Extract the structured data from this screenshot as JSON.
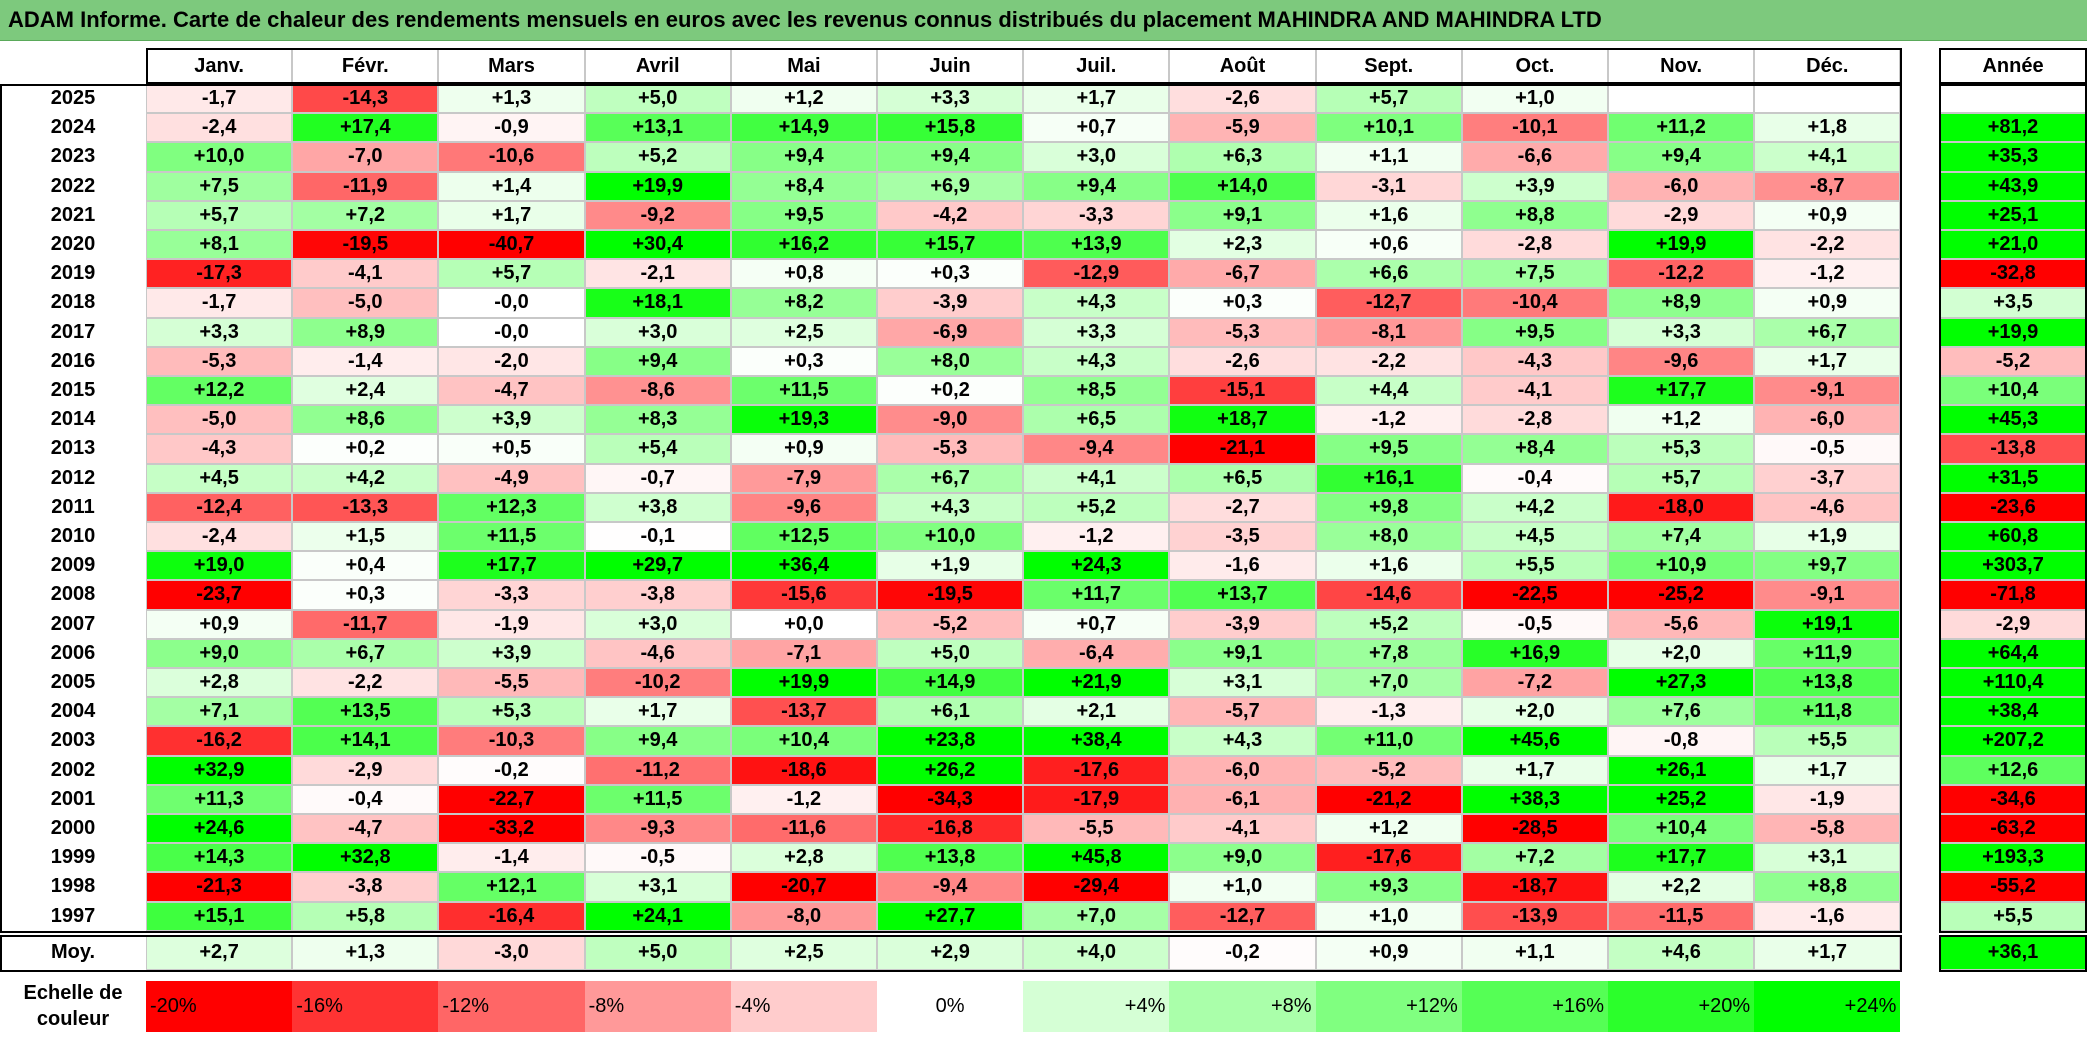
{
  "title": "ADAM Informe. Carte de chaleur des rendements mensuels en euros avec les revenus connus distribués du placement MAHINDRA AND MAHINDRA LTD",
  "colors": {
    "title_bg": "#7dc97d",
    "negative": "#ff0000",
    "positive": "#00ff00",
    "neutral": "#ffffff"
  },
  "legend": {
    "label": "Echelle de couleur",
    "label_lines": [
      "Echelle de",
      "couleur"
    ],
    "steps": [
      "-20%",
      "-16%",
      "-12%",
      "-8%",
      "-4%",
      "0%",
      "+4%",
      "+8%",
      "+12%",
      "+16%",
      "+20%",
      "+24%"
    ],
    "step_values": [
      -20,
      -16,
      -12,
      -8,
      -4,
      0,
      4,
      8,
      12,
      16,
      20,
      24
    ]
  },
  "chart_data": {
    "type": "heatmap",
    "title": "ADAM Informe. Carte de chaleur des rendements mensuels en euros avec les revenus connus distribués du placement MAHINDRA AND MAHINDRA LTD",
    "months": [
      "Janv.",
      "Févr.",
      "Mars",
      "Avril",
      "Mai",
      "Juin",
      "Juil.",
      "Août",
      "Sept.",
      "Oct.",
      "Nov.",
      "Déc."
    ],
    "annual_header": "Année",
    "avg_label": "Moy.",
    "rows": [
      {
        "year": "2025",
        "values": [
          "-1,7",
          "-14,3",
          "+1,3",
          "+5,0",
          "+1,2",
          "+3,3",
          "+1,7",
          "-2,6",
          "+5,7",
          "+1,0",
          "",
          ""
        ],
        "annual": ""
      },
      {
        "year": "2024",
        "values": [
          "-2,4",
          "+17,4",
          "-0,9",
          "+13,1",
          "+14,9",
          "+15,8",
          "+0,7",
          "-5,9",
          "+10,1",
          "-10,1",
          "+11,2",
          "+1,8"
        ],
        "annual": "+81,2"
      },
      {
        "year": "2023",
        "values": [
          "+10,0",
          "-7,0",
          "-10,6",
          "+5,2",
          "+9,4",
          "+9,4",
          "+3,0",
          "+6,3",
          "+1,1",
          "-6,6",
          "+9,4",
          "+4,1"
        ],
        "annual": "+35,3"
      },
      {
        "year": "2022",
        "values": [
          "+7,5",
          "-11,9",
          "+1,4",
          "+19,9",
          "+8,4",
          "+6,9",
          "+9,4",
          "+14,0",
          "-3,1",
          "+3,9",
          "-6,0",
          "-8,7"
        ],
        "annual": "+43,9"
      },
      {
        "year": "2021",
        "values": [
          "+5,7",
          "+7,2",
          "+1,7",
          "-9,2",
          "+9,5",
          "-4,2",
          "-3,3",
          "+9,1",
          "+1,6",
          "+8,8",
          "-2,9",
          "+0,9"
        ],
        "annual": "+25,1"
      },
      {
        "year": "2020",
        "values": [
          "+8,1",
          "-19,5",
          "-40,7",
          "+30,4",
          "+16,2",
          "+15,7",
          "+13,9",
          "+2,3",
          "+0,6",
          "-2,8",
          "+19,9",
          "-2,2"
        ],
        "annual": "+21,0"
      },
      {
        "year": "2019",
        "values": [
          "-17,3",
          "-4,1",
          "+5,7",
          "-2,1",
          "+0,8",
          "+0,3",
          "-12,9",
          "-6,7",
          "+6,6",
          "+7,5",
          "-12,2",
          "-1,2"
        ],
        "annual": "-32,8"
      },
      {
        "year": "2018",
        "values": [
          "-1,7",
          "-5,0",
          "-0,0",
          "+18,1",
          "+8,2",
          "-3,9",
          "+4,3",
          "+0,3",
          "-12,7",
          "-10,4",
          "+8,9",
          "+0,9"
        ],
        "annual": "+3,5"
      },
      {
        "year": "2017",
        "values": [
          "+3,3",
          "+8,9",
          "-0,0",
          "+3,0",
          "+2,5",
          "-6,9",
          "+3,3",
          "-5,3",
          "-8,1",
          "+9,5",
          "+3,3",
          "+6,7"
        ],
        "annual": "+19,9"
      },
      {
        "year": "2016",
        "values": [
          "-5,3",
          "-1,4",
          "-2,0",
          "+9,4",
          "+0,3",
          "+8,0",
          "+4,3",
          "-2,6",
          "-2,2",
          "-4,3",
          "-9,6",
          "+1,7"
        ],
        "annual": "-5,2"
      },
      {
        "year": "2015",
        "values": [
          "+12,2",
          "+2,4",
          "-4,7",
          "-8,6",
          "+11,5",
          "+0,2",
          "+8,5",
          "-15,1",
          "+4,4",
          "-4,1",
          "+17,7",
          "-9,1"
        ],
        "annual": "+10,4"
      },
      {
        "year": "2014",
        "values": [
          "-5,0",
          "+8,6",
          "+3,9",
          "+8,3",
          "+19,3",
          "-9,0",
          "+6,5",
          "+18,7",
          "-1,2",
          "-2,8",
          "+1,2",
          "-6,0"
        ],
        "annual": "+45,3"
      },
      {
        "year": "2013",
        "values": [
          "-4,3",
          "+0,2",
          "+0,5",
          "+5,4",
          "+0,9",
          "-5,3",
          "-9,4",
          "-21,1",
          "+9,5",
          "+8,4",
          "+5,3",
          "-0,5"
        ],
        "annual": "-13,8"
      },
      {
        "year": "2012",
        "values": [
          "+4,5",
          "+4,2",
          "-4,9",
          "-0,7",
          "-7,9",
          "+6,7",
          "+4,1",
          "+6,5",
          "+16,1",
          "-0,4",
          "+5,7",
          "-3,7"
        ],
        "annual": "+31,5"
      },
      {
        "year": "2011",
        "values": [
          "-12,4",
          "-13,3",
          "+12,3",
          "+3,8",
          "-9,6",
          "+4,3",
          "+5,2",
          "-2,7",
          "+9,8",
          "+4,2",
          "-18,0",
          "-4,6"
        ],
        "annual": "-23,6"
      },
      {
        "year": "2010",
        "values": [
          "-2,4",
          "+1,5",
          "+11,5",
          "-0,1",
          "+12,5",
          "+10,0",
          "-1,2",
          "-3,5",
          "+8,0",
          "+4,5",
          "+7,4",
          "+1,9"
        ],
        "annual": "+60,8"
      },
      {
        "year": "2009",
        "values": [
          "+19,0",
          "+0,4",
          "+17,7",
          "+29,7",
          "+36,4",
          "+1,9",
          "+24,3",
          "-1,6",
          "+1,6",
          "+5,5",
          "+10,9",
          "+9,7"
        ],
        "annual": "+303,7"
      },
      {
        "year": "2008",
        "values": [
          "-23,7",
          "+0,3",
          "-3,3",
          "-3,8",
          "-15,6",
          "-19,5",
          "+11,7",
          "+13,7",
          "-14,6",
          "-22,5",
          "-25,2",
          "-9,1"
        ],
        "annual": "-71,8"
      },
      {
        "year": "2007",
        "values": [
          "+0,9",
          "-11,7",
          "-1,9",
          "+3,0",
          "+0,0",
          "-5,2",
          "+0,7",
          "-3,9",
          "+5,2",
          "-0,5",
          "-5,6",
          "+19,1"
        ],
        "annual": "-2,9"
      },
      {
        "year": "2006",
        "values": [
          "+9,0",
          "+6,7",
          "+3,9",
          "-4,6",
          "-7,1",
          "+5,0",
          "-6,4",
          "+9,1",
          "+7,8",
          "+16,9",
          "+2,0",
          "+11,9"
        ],
        "annual": "+64,4"
      },
      {
        "year": "2005",
        "values": [
          "+2,8",
          "-2,2",
          "-5,5",
          "-10,2",
          "+19,9",
          "+14,9",
          "+21,9",
          "+3,1",
          "+7,0",
          "-7,2",
          "+27,3",
          "+13,8"
        ],
        "annual": "+110,4"
      },
      {
        "year": "2004",
        "values": [
          "+7,1",
          "+13,5",
          "+5,3",
          "+1,7",
          "-13,7",
          "+6,1",
          "+2,1",
          "-5,7",
          "-1,3",
          "+2,0",
          "+7,6",
          "+11,8"
        ],
        "annual": "+38,4"
      },
      {
        "year": "2003",
        "values": [
          "-16,2",
          "+14,1",
          "-10,3",
          "+9,4",
          "+10,4",
          "+23,8",
          "+38,4",
          "+4,3",
          "+11,0",
          "+45,6",
          "-0,8",
          "+5,5"
        ],
        "annual": "+207,2"
      },
      {
        "year": "2002",
        "values": [
          "+32,9",
          "-2,9",
          "-0,2",
          "-11,2",
          "-18,6",
          "+26,2",
          "-17,6",
          "-6,0",
          "-5,2",
          "+1,7",
          "+26,1",
          "+1,7"
        ],
        "annual": "+12,6"
      },
      {
        "year": "2001",
        "values": [
          "+11,3",
          "-0,4",
          "-22,7",
          "+11,5",
          "-1,2",
          "-34,3",
          "-17,9",
          "-6,1",
          "-21,2",
          "+38,3",
          "+25,2",
          "-1,9"
        ],
        "annual": "-34,6"
      },
      {
        "year": "2000",
        "values": [
          "+24,6",
          "-4,7",
          "-33,2",
          "-9,3",
          "-11,6",
          "-16,8",
          "-5,5",
          "-4,1",
          "+1,2",
          "-28,5",
          "+10,4",
          "-5,8"
        ],
        "annual": "-63,2"
      },
      {
        "year": "1999",
        "values": [
          "+14,3",
          "+32,8",
          "-1,4",
          "-0,5",
          "+2,8",
          "+13,8",
          "+45,8",
          "+9,0",
          "-17,6",
          "+7,2",
          "+17,7",
          "+3,1"
        ],
        "annual": "+193,3"
      },
      {
        "year": "1998",
        "values": [
          "-21,3",
          "-3,8",
          "+12,1",
          "+3,1",
          "-20,7",
          "-9,4",
          "-29,4",
          "+1,0",
          "+9,3",
          "-18,7",
          "+2,2",
          "+8,8"
        ],
        "annual": "-55,2"
      },
      {
        "year": "1997",
        "values": [
          "+15,1",
          "+5,8",
          "-16,4",
          "+24,1",
          "-8,0",
          "+27,7",
          "+7,0",
          "-12,7",
          "+1,0",
          "-13,9",
          "-11,5",
          "-1,6"
        ],
        "annual": "+5,5"
      }
    ],
    "averages": [
      "+2,7",
      "+1,3",
      "-3,0",
      "+5,0",
      "+2,5",
      "+2,9",
      "+4,0",
      "-0,2",
      "+0,9",
      "+1,1",
      "+4,6",
      "+1,7"
    ],
    "average_annual": "+36,1"
  }
}
